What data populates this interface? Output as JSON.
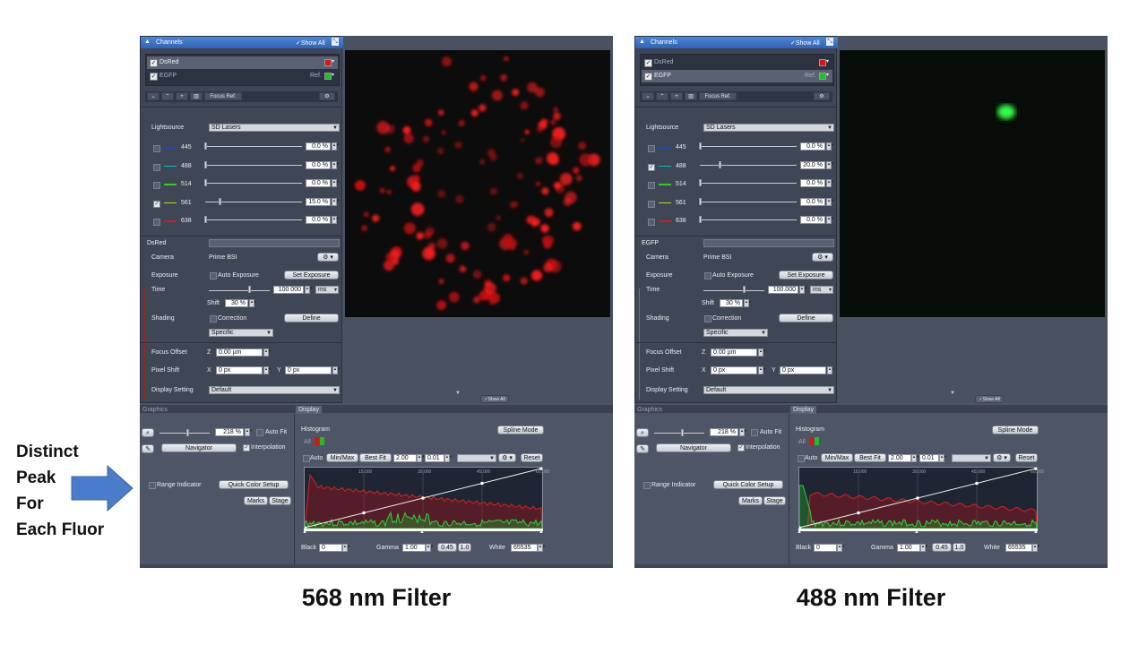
{
  "note_lines": [
    "Distinct",
    "Peak",
    "For",
    "Each Fluor"
  ],
  "panels": [
    {
      "caption": "568 nm Filter",
      "panel_title": "Channels",
      "show_all": "✓Show All",
      "channels": [
        {
          "name": "DsRed",
          "ref": "",
          "color": "#d01818",
          "selected": true
        },
        {
          "name": "EGFP",
          "ref": "Ref.",
          "color": "#20c020",
          "selected": false
        }
      ],
      "toolbar": {
        "collapse": "⌄",
        "expand": "⌃",
        "add": "+",
        "delete": "▥",
        "focus_ref": "Focus Ref.",
        "settings": "⚙"
      },
      "lightsource_label": "Lightsource",
      "lightsource_value": "SD Lasers",
      "lasers": [
        {
          "wl": "445",
          "color": "#1f46c8",
          "checked": false,
          "pct": "0.0 %",
          "level": 0.0
        },
        {
          "wl": "488",
          "color": "#10b8c8",
          "checked": false,
          "pct": "0.0 %",
          "level": 0.0
        },
        {
          "wl": "514",
          "color": "#3ec81f",
          "checked": false,
          "pct": "0.0 %",
          "level": 0.0
        },
        {
          "wl": "561",
          "color": "#c8d21a",
          "checked": true,
          "pct": "15.0 %",
          "level": 0.15
        },
        {
          "wl": "638",
          "color": "#c81f1f",
          "checked": false,
          "pct": "0.0 %",
          "level": 0.0
        }
      ],
      "channel_name": "DsRed",
      "accent": "#b01c1c",
      "camera_label": "Camera",
      "camera_value": "Prime BSI",
      "exposure_label": "Exposure",
      "auto_exposure": "Auto Exposure",
      "set_exposure": "Set Exposure",
      "time_label": "Time",
      "time_value": "100.000",
      "time_unit": "ms",
      "shift_label": "Shift",
      "shift_value": "30 %",
      "shading_label": "Shading",
      "correction": "Correction",
      "define": "Define",
      "specific": "Specific",
      "focus_offset_label": "Focus Offset",
      "focus_z": "Z",
      "focus_value": "0.00 µm",
      "pixel_shift_label": "Pixel Shift",
      "px_x_label": "X",
      "px_x": "0 px",
      "px_y_label": "Y",
      "px_y": "0 px",
      "display_setting_label": "Display Setting",
      "display_setting_value": "Default",
      "show_all_bottom": "✓Show All",
      "graphics_tab": "Graphics",
      "display_tab": "Display",
      "zoom": "218 %",
      "auto_fit": "Auto Fit",
      "navigator": "Navigator",
      "interpolation": "Interpolation",
      "range_indicator": "Range Indicator",
      "quick_color": "Quick Color Setup",
      "marks": "Marks",
      "stage": "Stage",
      "histogram_label": "Histogram",
      "all_label": "All",
      "spline_mode": "Spline Mode",
      "auto": "Auto",
      "minmax": "Min/Max",
      "bestfit": "Best Fit",
      "hv1": "2.00",
      "hv2": "0.01",
      "reset": "Reset",
      "ticks": [
        "15,000",
        "30,000",
        "45,000",
        "60,000"
      ],
      "black_label": "Black",
      "black": "0",
      "gamma_label": "Gamma",
      "gamma": "1.00",
      "g2": "0.45",
      "g3": "1.0",
      "white_label": "White",
      "white": "65535"
    },
    {
      "caption": "488 nm Filter",
      "panel_title": "Channels",
      "show_all": "✓Show All",
      "channels": [
        {
          "name": "DsRed",
          "ref": "",
          "color": "#d01818",
          "selected": false
        },
        {
          "name": "EGFP",
          "ref": "Ref.",
          "color": "#20c020",
          "selected": true
        }
      ],
      "toolbar": {
        "collapse": "⌄",
        "expand": "⌃",
        "add": "+",
        "delete": "▥",
        "focus_ref": "Focus Ref.",
        "settings": "⚙"
      },
      "lightsource_label": "Lightsource",
      "lightsource_value": "SD Lasers",
      "lasers": [
        {
          "wl": "445",
          "color": "#1f46c8",
          "checked": false,
          "pct": "0.0 %",
          "level": 0.0
        },
        {
          "wl": "488",
          "color": "#10b8c8",
          "checked": true,
          "pct": "20.0 %",
          "level": 0.2
        },
        {
          "wl": "514",
          "color": "#3ec81f",
          "checked": false,
          "pct": "0.0 %",
          "level": 0.0
        },
        {
          "wl": "561",
          "color": "#c8d21a",
          "checked": false,
          "pct": "0.0 %",
          "level": 0.0
        },
        {
          "wl": "638",
          "color": "#c81f1f",
          "checked": false,
          "pct": "0.0 %",
          "level": 0.0
        }
      ],
      "channel_name": "EGFP",
      "accent": "#1fa83a",
      "camera_label": "Camera",
      "camera_value": "Prime BSI",
      "exposure_label": "Exposure",
      "auto_exposure": "Auto Exposure",
      "set_exposure": "Set Exposure",
      "time_label": "Time",
      "time_value": "100.000",
      "time_unit": "ms",
      "shift_label": "Shift",
      "shift_value": "30 %",
      "shading_label": "Shading",
      "correction": "Correction",
      "define": "Define",
      "specific": "Specific",
      "focus_offset_label": "Focus Offset",
      "focus_z": "Z",
      "focus_value": "0.00 µm",
      "pixel_shift_label": "Pixel Shift",
      "px_x_label": "X",
      "px_x": "0 px",
      "px_y_label": "Y",
      "px_y": "0 px",
      "display_setting_label": "Display Setting",
      "display_setting_value": "Default",
      "show_all_bottom": "✓Show All",
      "graphics_tab": "Graphics",
      "display_tab": "Display",
      "zoom": "218 %",
      "auto_fit": "Auto Fit",
      "navigator": "Navigator",
      "interpolation": "Interpolation",
      "range_indicator": "Range Indicator",
      "quick_color": "Quick Color Setup",
      "marks": "Marks",
      "stage": "Stage",
      "histogram_label": "Histogram",
      "all_label": "All",
      "spline_mode": "Spline Mode",
      "auto": "Auto",
      "minmax": "Min/Max",
      "bestfit": "Best Fit",
      "hv1": "2.00",
      "hv2": "0.01",
      "reset": "Reset",
      "ticks": [
        "15,000",
        "30,000",
        "45,000",
        "60,000"
      ],
      "black_label": "Black",
      "black": "0",
      "gamma_label": "Gamma",
      "gamma": "1.00",
      "g2": "0.45",
      "g3": "1.0",
      "white_label": "White",
      "white": "65535"
    }
  ]
}
